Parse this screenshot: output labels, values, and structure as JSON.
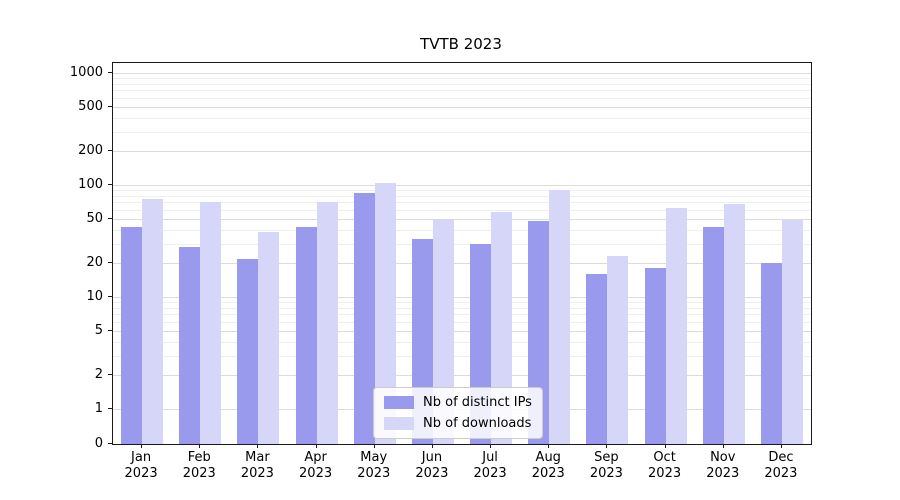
{
  "title": "TVTB 2023",
  "chart_data": {
    "type": "bar",
    "title": "TVTB 2023",
    "xlabel": "",
    "ylabel": "",
    "yscale": "symlog",
    "grid": true,
    "legend_position": "lower center",
    "ylim": [
      0,
      1200
    ],
    "yticks": [
      0,
      1,
      2,
      5,
      10,
      20,
      50,
      100,
      200,
      500,
      1000
    ],
    "minor_gridlines": [
      3,
      4,
      6,
      7,
      8,
      9,
      30,
      40,
      60,
      70,
      80,
      90,
      300,
      400,
      600,
      700,
      800,
      900
    ],
    "categories": [
      "Jan 2023",
      "Feb 2023",
      "Mar 2023",
      "Apr 2023",
      "May 2023",
      "Jun 2023",
      "Jul 2023",
      "Aug 2023",
      "Sep 2023",
      "Oct 2023",
      "Nov 2023",
      "Dec 2023"
    ],
    "series": [
      {
        "name": "Nb of distinct IPs",
        "color": "#9999ee",
        "values": [
          42,
          28,
          22,
          42,
          85,
          33,
          30,
          48,
          16,
          18,
          42,
          20
        ]
      },
      {
        "name": "Nb of downloads",
        "color": "#d6d6f8",
        "values": [
          75,
          70,
          38,
          70,
          105,
          50,
          57,
          90,
          23,
          62,
          68,
          49
        ]
      }
    ]
  }
}
